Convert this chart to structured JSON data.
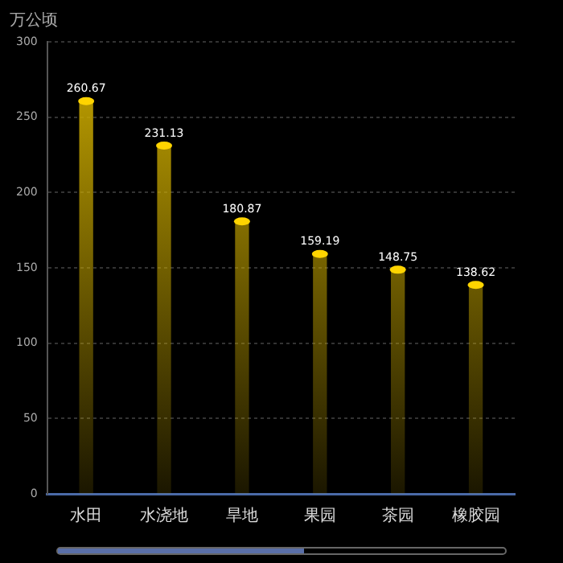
{
  "chart_data": {
    "type": "bar",
    "ylabel": "万公顷",
    "categories": [
      "水田",
      "水浇地",
      "旱地",
      "果园",
      "茶园",
      "橡胶园"
    ],
    "values": [
      260.67,
      231.13,
      180.87,
      159.19,
      148.75,
      138.62
    ],
    "color": "#c9a800",
    "ylim": [
      0,
      300
    ],
    "yticks": [
      0,
      50,
      100,
      150,
      200,
      250,
      300
    ],
    "grid": "y",
    "data_labels": true
  }
}
